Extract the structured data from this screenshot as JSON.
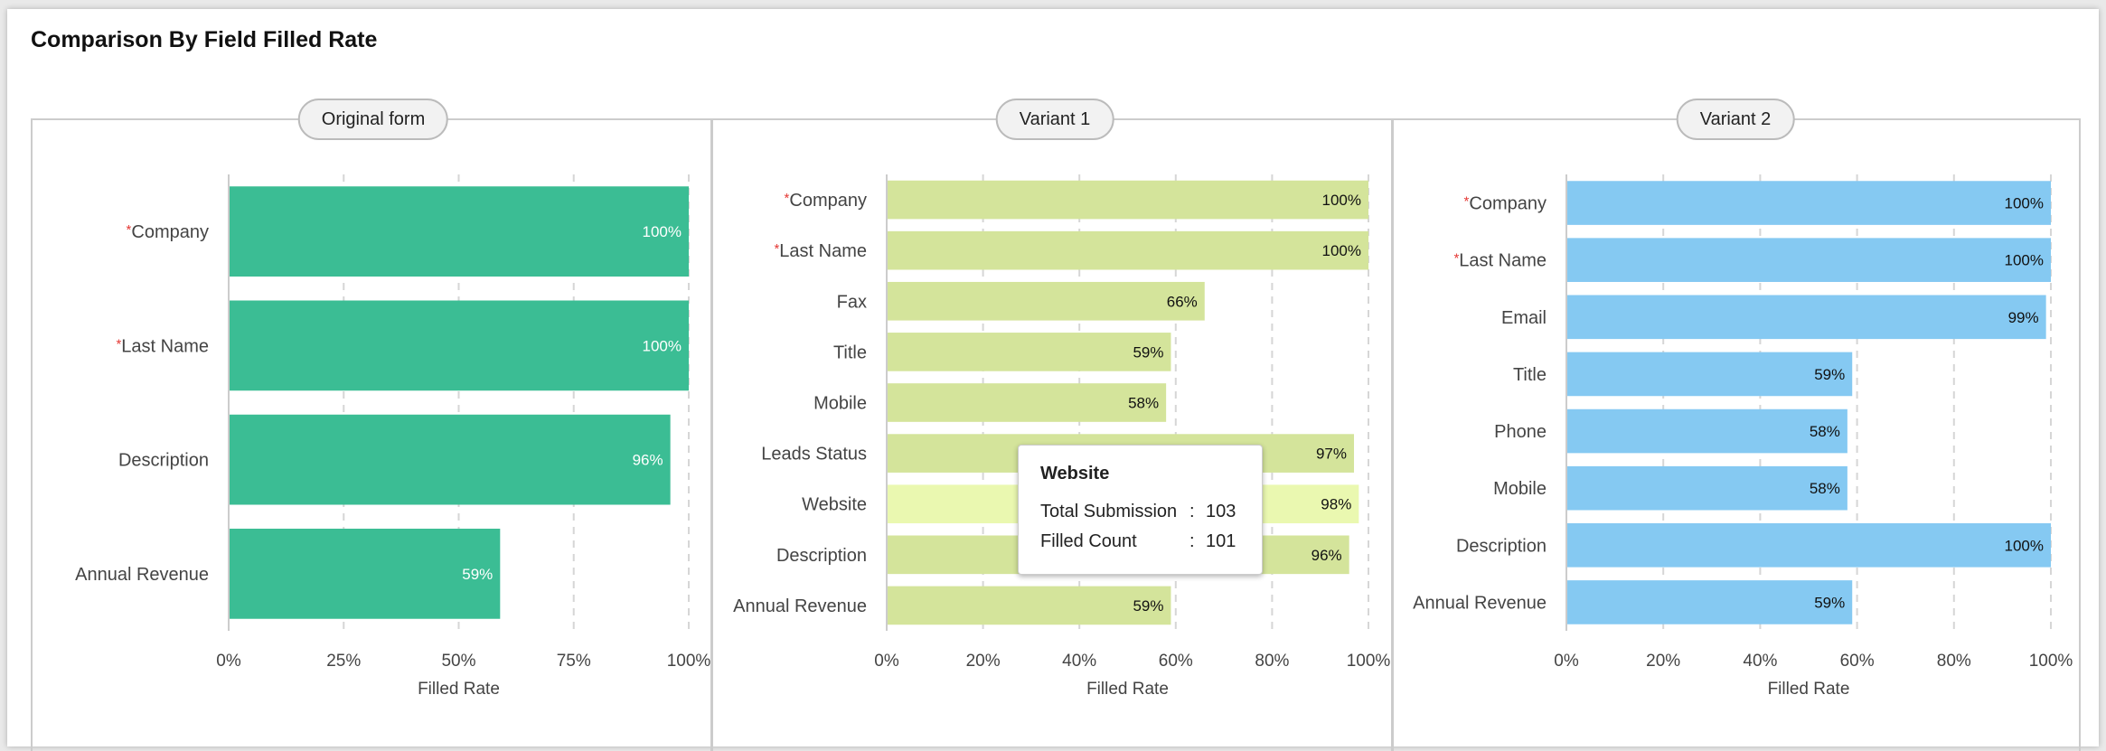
{
  "title": "Comparison By Field Filled Rate",
  "chart_data": [
    {
      "type": "bar",
      "orientation": "horizontal",
      "panel_title": "Original form",
      "categories": [
        "Company",
        "Last Name",
        "Description",
        "Annual Revenue"
      ],
      "required": [
        true,
        true,
        false,
        false
      ],
      "values": [
        100,
        100,
        96,
        59
      ],
      "value_labels": [
        "100%",
        "100%",
        "96%",
        "59%"
      ],
      "xticks": [
        "0%",
        "25%",
        "50%",
        "75%",
        "100%"
      ],
      "xtick_values": [
        0,
        25,
        50,
        75,
        100
      ],
      "xlabel": "Filled Rate",
      "xlim": [
        0,
        100
      ],
      "color": "#3bbd94",
      "label_color": "#ffffff"
    },
    {
      "type": "bar",
      "orientation": "horizontal",
      "panel_title": "Variant 1",
      "categories": [
        "Company",
        "Last Name",
        "Fax",
        "Title",
        "Mobile",
        "Leads Status",
        "Website",
        "Description",
        "Annual Revenue"
      ],
      "required": [
        true,
        true,
        false,
        false,
        false,
        false,
        false,
        false,
        false
      ],
      "values": [
        100,
        100,
        66,
        59,
        58,
        97,
        98,
        96,
        59
      ],
      "value_labels": [
        "100%",
        "100%",
        "66%",
        "59%",
        "58%",
        "97%",
        "98%",
        "96%",
        "59%"
      ],
      "xticks": [
        "0%",
        "20%",
        "40%",
        "60%",
        "80%",
        "100%"
      ],
      "xtick_values": [
        0,
        20,
        40,
        60,
        80,
        100
      ],
      "xlabel": "Filled Rate",
      "xlim": [
        0,
        100
      ],
      "color": "#d4e49b",
      "highlight_color": "#eaf8b0",
      "highlight_index": 6,
      "label_color": "#111111"
    },
    {
      "type": "bar",
      "orientation": "horizontal",
      "panel_title": "Variant 2",
      "categories": [
        "Company",
        "Last Name",
        "Email",
        "Title",
        "Phone",
        "Mobile",
        "Description",
        "Annual Revenue"
      ],
      "required": [
        true,
        true,
        false,
        false,
        false,
        false,
        false,
        false
      ],
      "values": [
        100,
        100,
        99,
        59,
        58,
        58,
        100,
        59
      ],
      "value_labels": [
        "100%",
        "100%",
        "99%",
        "59%",
        "58%",
        "58%",
        "100%",
        "59%"
      ],
      "xticks": [
        "0%",
        "20%",
        "40%",
        "60%",
        "80%",
        "100%"
      ],
      "xtick_values": [
        0,
        20,
        40,
        60,
        80,
        100
      ],
      "xlabel": "Filled Rate",
      "xlim": [
        0,
        100
      ],
      "color": "#85c9f2",
      "label_color": "#111111"
    }
  ],
  "tooltip": {
    "title": "Website",
    "rows": [
      {
        "label": "Total Submission",
        "sep": ":",
        "value": "103"
      },
      {
        "label": "Filled Count",
        "sep": ":",
        "value": "101"
      }
    ]
  },
  "required_marker": "*",
  "required_color": "#e53935"
}
